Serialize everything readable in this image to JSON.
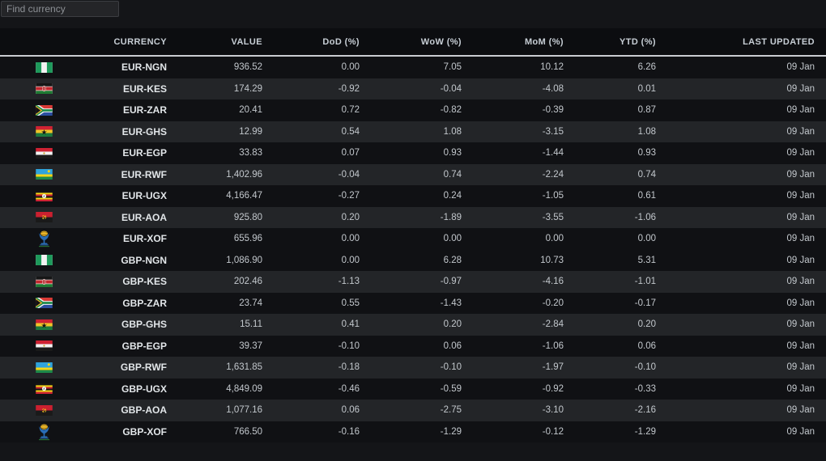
{
  "search": {
    "placeholder": "Find currency"
  },
  "table": {
    "columns": {
      "currency": "CURRENCY",
      "value": "VALUE",
      "dod": "DoD (%)",
      "wow": "WoW (%)",
      "mom": "MoM (%)",
      "ytd": "YTD (%)",
      "updated": "LAST UPDATED"
    },
    "rows": [
      {
        "icon": "nigeria-flag-icon",
        "pair": "EUR-NGN",
        "value": "936.52",
        "dod": "0.00",
        "wow": "7.05",
        "mom": "10.12",
        "ytd": "6.26",
        "updated": "09 Jan"
      },
      {
        "icon": "kenya-flag-icon",
        "pair": "EUR-KES",
        "value": "174.29",
        "dod": "-0.92",
        "wow": "-0.04",
        "mom": "-4.08",
        "ytd": "0.01",
        "updated": "09 Jan"
      },
      {
        "icon": "south-africa-flag-icon",
        "pair": "EUR-ZAR",
        "value": "20.41",
        "dod": "0.72",
        "wow": "-0.82",
        "mom": "-0.39",
        "ytd": "0.87",
        "updated": "09 Jan"
      },
      {
        "icon": "ghana-flag-icon",
        "pair": "EUR-GHS",
        "value": "12.99",
        "dod": "0.54",
        "wow": "1.08",
        "mom": "-3.15",
        "ytd": "1.08",
        "updated": "09 Jan"
      },
      {
        "icon": "egypt-flag-icon",
        "pair": "EUR-EGP",
        "value": "33.83",
        "dod": "0.07",
        "wow": "0.93",
        "mom": "-1.44",
        "ytd": "0.93",
        "updated": "09 Jan"
      },
      {
        "icon": "rwanda-flag-icon",
        "pair": "EUR-RWF",
        "value": "1,402.96",
        "dod": "-0.04",
        "wow": "0.74",
        "mom": "-2.24",
        "ytd": "0.74",
        "updated": "09 Jan"
      },
      {
        "icon": "uganda-flag-icon",
        "pair": "EUR-UGX",
        "value": "4,166.47",
        "dod": "-0.27",
        "wow": "0.24",
        "mom": "-1.05",
        "ytd": "0.61",
        "updated": "09 Jan"
      },
      {
        "icon": "angola-flag-icon",
        "pair": "EUR-AOA",
        "value": "925.80",
        "dod": "0.20",
        "wow": "-1.89",
        "mom": "-3.55",
        "ytd": "-1.06",
        "updated": "09 Jan"
      },
      {
        "icon": "bceao-emblem-icon",
        "pair": "EUR-XOF",
        "value": "655.96",
        "dod": "0.00",
        "wow": "0.00",
        "mom": "0.00",
        "ytd": "0.00",
        "updated": "09 Jan"
      },
      {
        "icon": "nigeria-flag-icon",
        "pair": "GBP-NGN",
        "value": "1,086.90",
        "dod": "0.00",
        "wow": "6.28",
        "mom": "10.73",
        "ytd": "5.31",
        "updated": "09 Jan"
      },
      {
        "icon": "kenya-flag-icon",
        "pair": "GBP-KES",
        "value": "202.46",
        "dod": "-1.13",
        "wow": "-0.97",
        "mom": "-4.16",
        "ytd": "-1.01",
        "updated": "09 Jan"
      },
      {
        "icon": "south-africa-flag-icon",
        "pair": "GBP-ZAR",
        "value": "23.74",
        "dod": "0.55",
        "wow": "-1.43",
        "mom": "-0.20",
        "ytd": "-0.17",
        "updated": "09 Jan"
      },
      {
        "icon": "ghana-flag-icon",
        "pair": "GBP-GHS",
        "value": "15.11",
        "dod": "0.41",
        "wow": "0.20",
        "mom": "-2.84",
        "ytd": "0.20",
        "updated": "09 Jan"
      },
      {
        "icon": "egypt-flag-icon",
        "pair": "GBP-EGP",
        "value": "39.37",
        "dod": "-0.10",
        "wow": "0.06",
        "mom": "-1.06",
        "ytd": "0.06",
        "updated": "09 Jan"
      },
      {
        "icon": "rwanda-flag-icon",
        "pair": "GBP-RWF",
        "value": "1,631.85",
        "dod": "-0.18",
        "wow": "-0.10",
        "mom": "-1.97",
        "ytd": "-0.10",
        "updated": "09 Jan"
      },
      {
        "icon": "uganda-flag-icon",
        "pair": "GBP-UGX",
        "value": "4,849.09",
        "dod": "-0.46",
        "wow": "-0.59",
        "mom": "-0.92",
        "ytd": "-0.33",
        "updated": "09 Jan"
      },
      {
        "icon": "angola-flag-icon",
        "pair": "GBP-AOA",
        "value": "1,077.16",
        "dod": "0.06",
        "wow": "-2.75",
        "mom": "-3.10",
        "ytd": "-2.16",
        "updated": "09 Jan"
      },
      {
        "icon": "bceao-emblem-icon",
        "pair": "GBP-XOF",
        "value": "766.50",
        "dod": "-0.16",
        "wow": "-1.29",
        "mom": "-0.12",
        "ytd": "-1.29",
        "updated": "09 Jan"
      }
    ]
  },
  "colors": {
    "page_bg": "#141518",
    "header_bg": "#0c0d10",
    "row_dark": "#101114",
    "row_light": "#232528",
    "separator": "#c9ccd1",
    "text_primary": "#e2e6e9",
    "text_secondary": "#c3c8cd"
  }
}
